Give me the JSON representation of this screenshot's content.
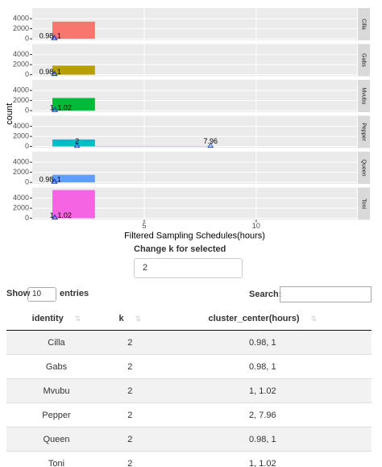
{
  "chart_data": {
    "type": "histogram",
    "x_label": "Filtered Sampling Schedules(hours)",
    "y_label": "count",
    "xlim": [
      0,
      14.5
    ],
    "xticks": [
      5,
      10
    ],
    "ylim": [
      -300,
      6100
    ],
    "yticks": [
      0,
      2000,
      4000
    ],
    "grid": true,
    "bins": [
      0.9,
      2.8,
      8
    ],
    "series": [
      {
        "name": "Cilla",
        "color": "#F8766D",
        "values": [
          3400,
          0
        ],
        "centers": [
          0.98,
          1
        ]
      },
      {
        "name": "Gabs",
        "color": "#B79F00",
        "values": [
          1800,
          0
        ],
        "centers": [
          0.98,
          1
        ]
      },
      {
        "name": "Mvubu",
        "color": "#00BA38",
        "values": [
          2500,
          0
        ],
        "centers": [
          1,
          1.02
        ]
      },
      {
        "name": "Pepper",
        "color": "#00BFC4",
        "values": [
          1400,
          60
        ],
        "centers": [
          2,
          7.96
        ]
      },
      {
        "name": "Queen",
        "color": "#619CFF",
        "values": [
          1500,
          0
        ],
        "centers": [
          0.98,
          1
        ]
      },
      {
        "name": "Toni",
        "color": "#F564E3",
        "values": [
          5600,
          0
        ],
        "centers": [
          1,
          1.02
        ]
      }
    ]
  },
  "control": {
    "label": "Change k for selected",
    "value": 2
  },
  "table": {
    "show_label": "Show",
    "length": 10,
    "entries_label": "entries",
    "search_label": "Search:",
    "columns": [
      "identity",
      "k",
      "cluster_center(hours)"
    ],
    "rows": [
      [
        "Cilla",
        2,
        "0.98, 1"
      ],
      [
        "Gabs",
        2,
        "0.98, 1"
      ],
      [
        "Mvubu",
        2,
        "1, 1.02"
      ],
      [
        "Pepper",
        2,
        "2, 7.96"
      ],
      [
        "Queen",
        2,
        "0.98, 1"
      ],
      [
        "Toni",
        2,
        "1, 1.02"
      ]
    ]
  }
}
